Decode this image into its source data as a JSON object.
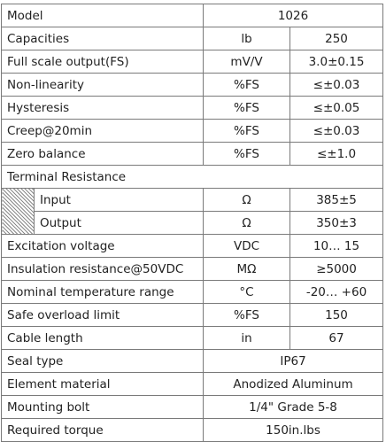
{
  "rows": [
    {
      "param": "Model",
      "value": "1026"
    },
    {
      "param": "Capacities",
      "unit": "lb",
      "value": "250"
    },
    {
      "param": "Full scale output(FS)",
      "unit": "mV/V",
      "value": "3.0±0.15"
    },
    {
      "param": "Non-linearity",
      "unit": "%FS",
      "value": "≤±0.03"
    },
    {
      "param": "Hysteresis",
      "unit": "%FS",
      "value": "≤±0.05"
    },
    {
      "param": "Creep@20min",
      "unit": "%FS",
      "value": "≤±0.03"
    },
    {
      "param": "Zero balance",
      "unit": "%FS",
      "value": "≤±1.0"
    },
    {
      "param": "Terminal Resistance"
    },
    {
      "param": "Input",
      "unit": "Ω",
      "value": "385±5"
    },
    {
      "param": "Output",
      "unit": "Ω",
      "value": "350±3"
    },
    {
      "param": "Excitation voltage",
      "unit": "VDC",
      "value": "10… 15"
    },
    {
      "param": "Insulation resistance@50VDC",
      "unit": "MΩ",
      "value": "≥5000"
    },
    {
      "param": "Nominal temperature range",
      "unit": "°C",
      "value": "-20… +60"
    },
    {
      "param": "Safe overload limit",
      "unit": "%FS",
      "value": "150"
    },
    {
      "param": "Cable length",
      "unit": "in",
      "value": "67"
    },
    {
      "param": "Seal type",
      "value": "IP67"
    },
    {
      "param": "Element material",
      "value": "Anodized Aluminum"
    },
    {
      "param": "Mounting bolt",
      "value": "1/4\" Grade 5-8"
    },
    {
      "param": "Required torque",
      "value": "150in.lbs"
    }
  ]
}
